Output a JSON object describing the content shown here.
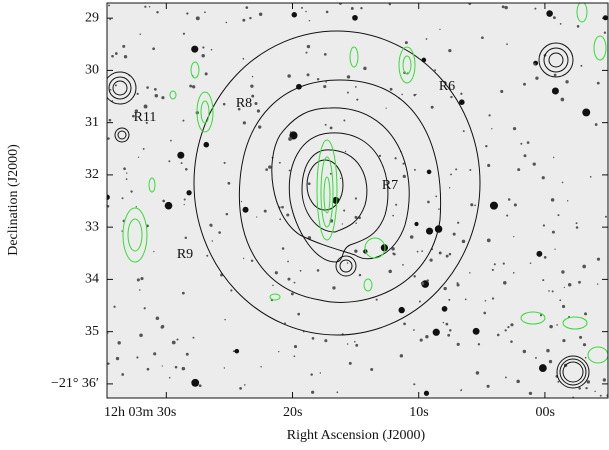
{
  "chart_data": {
    "type": "image",
    "xlabel": "Right Ascension (J2000)",
    "ylabel": "Declination (J2000)",
    "xlim": [
      34.7,
      -5.0
    ],
    "xticks": [
      {
        "value": 30,
        "label": "12h 03m 30s"
      },
      {
        "value": 20,
        "label": "20s"
      },
      {
        "value": 10,
        "label": "10s"
      },
      {
        "value": 0,
        "label": "00s"
      }
    ],
    "ylim": [
      36.27,
      28.71
    ],
    "yticks": [
      29,
      30,
      31,
      32,
      33,
      34,
      35,
      {
        "value": 36,
        "label": "−21° 36′"
      }
    ],
    "annotations": [
      "R6",
      "R7",
      "R8",
      "R9",
      "R11"
    ]
  }
}
